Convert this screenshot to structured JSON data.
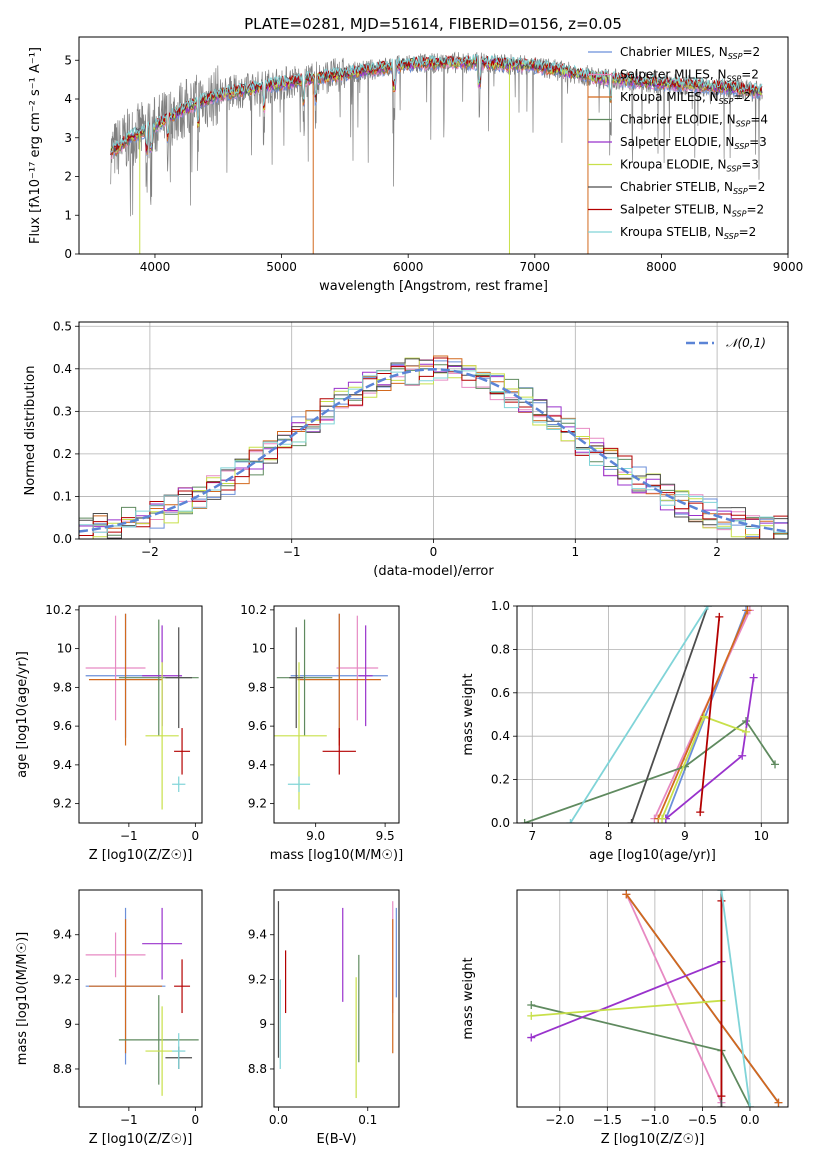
{
  "figure_title": "PLATE=0281, MJD=51614, FIBERID=0156, z=0.05",
  "colors": {
    "Chabrier MILES": "#6b8fd9",
    "Salpeter MILES": "#e78ac3",
    "Kroupa MILES": "#d2691e",
    "Chabrier ELODIE": "#5f8a5f",
    "Salpeter ELODIE": "#9932cc",
    "Kroupa ELODIE": "#c8e04a",
    "Chabrier STELIB": "#4d4d4d",
    "Salpeter STELIB": "#b30000",
    "Kroupa STELIB": "#80d4d8"
  },
  "legend_spectrum": [
    {
      "name": "Chabrier MILES",
      "label": "Chabrier MILES, N",
      "sub": "SSP",
      "tail": "=2"
    },
    {
      "name": "Salpeter MILES",
      "label": "Salpeter MILES, N",
      "sub": "SSP",
      "tail": "=2"
    },
    {
      "name": "Kroupa MILES",
      "label": "Kroupa MILES, N",
      "sub": "SSP",
      "tail": "=2"
    },
    {
      "name": "Chabrier ELODIE",
      "label": "Chabrier ELODIE, N",
      "sub": "SSP",
      "tail": "=4"
    },
    {
      "name": "Salpeter ELODIE",
      "label": "Salpeter ELODIE, N",
      "sub": "SSP",
      "tail": "=3"
    },
    {
      "name": "Kroupa ELODIE",
      "label": "Kroupa ELODIE, N",
      "sub": "SSP",
      "tail": "=3"
    },
    {
      "name": "Chabrier STELIB",
      "label": "Chabrier STELIB, N",
      "sub": "SSP",
      "tail": "=2"
    },
    {
      "name": "Salpeter STELIB",
      "label": "Salpeter STELIB, N",
      "sub": "SSP",
      "tail": "=2"
    },
    {
      "name": "Kroupa STELIB",
      "label": "Kroupa STELIB, N",
      "sub": "SSP",
      "tail": "=2"
    }
  ],
  "chart_data": [
    {
      "id": "spectrum",
      "type": "line",
      "xlabel": "wavelength [Angstrom, rest frame]",
      "ylabel": "Flux [fλ10⁻¹⁷ erg cm⁻² s⁻¹ A⁻¹]",
      "xlim": [
        3400,
        9000
      ],
      "ylim": [
        0,
        5.6
      ],
      "xticks": [
        4000,
        5000,
        6000,
        7000,
        8000,
        9000
      ],
      "yticks": [
        0,
        1,
        2,
        3,
        4,
        5
      ],
      "data_series": {
        "name": "",
        "color": "#808080",
        "x_range": [
          3650,
          8800
        ]
      },
      "continuum_points": [
        [
          3650,
          2.6
        ],
        [
          3800,
          3.0
        ],
        [
          4000,
          3.3
        ],
        [
          4200,
          3.7
        ],
        [
          4500,
          4.1
        ],
        [
          5000,
          4.4
        ],
        [
          5500,
          4.65
        ],
        [
          6000,
          4.9
        ],
        [
          6500,
          4.95
        ],
        [
          7000,
          4.85
        ],
        [
          7500,
          4.55
        ],
        [
          8000,
          4.4
        ],
        [
          8500,
          4.3
        ],
        [
          8750,
          4.2
        ]
      ],
      "legend_position": "top-right"
    },
    {
      "id": "residual_histogram",
      "type": "line",
      "xlabel": "(data-model)/error",
      "ylabel": "Normed distribution",
      "xlim": [
        -2.5,
        2.5
      ],
      "ylim": [
        0,
        0.51
      ],
      "xticks": [
        -2,
        -1,
        0,
        1,
        2
      ],
      "yticks": [
        0.0,
        0.1,
        0.2,
        0.3,
        0.4,
        0.5
      ],
      "grid": true,
      "legend_position": "top-right",
      "reference": {
        "name": "𝒩(0,1)",
        "mean": 0,
        "sigma": 1
      },
      "bin_width": 0.1
    },
    {
      "id": "age_vs_Z",
      "type": "scatter",
      "xlabel": "Z [log10(Z/Z☉)]",
      "ylabel": "age [log10(age/yr)]",
      "xlim": [
        -1.75,
        0.1
      ],
      "ylim": [
        9.1,
        10.22
      ],
      "xticks": [
        -1,
        0
      ],
      "yticks": [
        9.2,
        9.4,
        9.6,
        9.8,
        10.0,
        10.2
      ],
      "points": [
        {
          "model": "Chabrier MILES",
          "x": -1.05,
          "y": 9.86,
          "xerr": 0.6,
          "yerr": 0.32
        },
        {
          "model": "Salpeter MILES",
          "x": -1.2,
          "y": 9.9,
          "xerr": 0.45,
          "yerr": 0.27
        },
        {
          "model": "Kroupa MILES",
          "x": -1.05,
          "y": 9.84,
          "xerr": 0.55,
          "yerr": 0.34
        },
        {
          "model": "Chabrier ELODIE",
          "x": -0.55,
          "y": 9.85,
          "xerr": 0.6,
          "yerr": 0.3
        },
        {
          "model": "Salpeter ELODIE",
          "x": -0.5,
          "y": 9.86,
          "xerr": 0.3,
          "yerr": 0.26
        },
        {
          "model": "Kroupa ELODIE",
          "x": -0.5,
          "y": 9.55,
          "xerr": 0.25,
          "yerr": 0.38
        },
        {
          "model": "Chabrier STELIB",
          "x": -0.25,
          "y": 9.85,
          "xerr": 0.2,
          "yerr": 0.26
        },
        {
          "model": "Salpeter STELIB",
          "x": -0.2,
          "y": 9.47,
          "xerr": 0.12,
          "yerr": 0.12
        },
        {
          "model": "Kroupa STELIB",
          "x": -0.25,
          "y": 9.3,
          "xerr": 0.1,
          "yerr": 0.04
        }
      ]
    },
    {
      "id": "age_vs_mass",
      "type": "scatter",
      "xlabel": "mass [log10(M/M☉)]",
      "ylabel": "",
      "xlim": [
        8.7,
        9.6
      ],
      "ylim": [
        9.1,
        10.22
      ],
      "xticks": [
        9.0,
        9.5
      ],
      "yticks": [
        9.2,
        9.4,
        9.6,
        9.8,
        10.0,
        10.2
      ],
      "points": [
        {
          "model": "Chabrier MILES",
          "x": 9.17,
          "y": 9.86,
          "xerr": 0.35,
          "yerr": 0.32
        },
        {
          "model": "Salpeter MILES",
          "x": 9.3,
          "y": 9.9,
          "xerr": 0.15,
          "yerr": 0.27
        },
        {
          "model": "Kroupa MILES",
          "x": 9.17,
          "y": 9.84,
          "xerr": 0.3,
          "yerr": 0.34
        },
        {
          "model": "Chabrier ELODIE",
          "x": 8.92,
          "y": 9.85,
          "xerr": 0.2,
          "yerr": 0.3
        },
        {
          "model": "Salpeter ELODIE",
          "x": 9.36,
          "y": 9.86,
          "xerr": 0.05,
          "yerr": 0.26
        },
        {
          "model": "Kroupa ELODIE",
          "x": 8.88,
          "y": 9.55,
          "xerr": 0.2,
          "yerr": 0.38
        },
        {
          "model": "Chabrier STELIB",
          "x": 8.86,
          "y": 9.85,
          "xerr": 0.05,
          "yerr": 0.26
        },
        {
          "model": "Salpeter STELIB",
          "x": 9.17,
          "y": 9.47,
          "xerr": 0.12,
          "yerr": 0.12
        },
        {
          "model": "Kroupa STELIB",
          "x": 8.88,
          "y": 9.3,
          "xerr": 0.08,
          "yerr": 0.04
        }
      ]
    },
    {
      "id": "weight_vs_age",
      "type": "line",
      "xlabel": "age [log10(age/yr)]",
      "ylabel": "mass weight",
      "xlim": [
        6.8,
        10.35
      ],
      "ylim": [
        0,
        1
      ],
      "xticks": [
        7,
        8,
        9,
        10
      ],
      "yticks": [
        0.0,
        0.2,
        0.4,
        0.6,
        0.8,
        1.0
      ],
      "grid": true,
      "series": [
        {
          "name": "Chabrier MILES",
          "x": [
            8.75,
            9.8
          ],
          "y": [
            0.02,
            0.98
          ]
        },
        {
          "name": "Salpeter MILES",
          "x": [
            8.6,
            9.85
          ],
          "y": [
            0.02,
            0.98
          ]
        },
        {
          "name": "Kroupa MILES",
          "x": [
            8.65,
            9.82
          ],
          "y": [
            0.02,
            0.98
          ]
        },
        {
          "name": "Chabrier ELODIE",
          "x": [
            6.9,
            9.0,
            9.8,
            10.18
          ],
          "y": [
            0.0,
            0.26,
            0.47,
            0.27
          ]
        },
        {
          "name": "Salpeter ELODIE",
          "x": [
            8.75,
            9.75,
            9.9
          ],
          "y": [
            0.02,
            0.31,
            0.67
          ]
        },
        {
          "name": "Kroupa ELODIE",
          "x": [
            8.7,
            9.25,
            9.8
          ],
          "y": [
            0.02,
            0.49,
            0.42
          ]
        },
        {
          "name": "Chabrier STELIB",
          "x": [
            8.3,
            9.3
          ],
          "y": [
            0.0,
            1.0
          ]
        },
        {
          "name": "Salpeter STELIB",
          "x": [
            9.2,
            9.45
          ],
          "y": [
            0.05,
            0.95
          ]
        },
        {
          "name": "Kroupa STELIB",
          "x": [
            7.5,
            9.3
          ],
          "y": [
            0.0,
            1.0
          ]
        }
      ]
    },
    {
      "id": "mass_vs_Z",
      "type": "scatter",
      "xlabel": "Z [log10(Z/Z☉)]",
      "ylabel": "mass [log10(M/M☉)]",
      "xlim": [
        -1.75,
        0.1
      ],
      "ylim": [
        8.63,
        9.6
      ],
      "xticks": [
        -1,
        0
      ],
      "yticks": [
        8.8,
        9.0,
        9.2,
        9.4
      ],
      "points": [
        {
          "model": "Chabrier MILES",
          "x": -1.05,
          "y": 9.17,
          "xerr": 0.6,
          "yerr": 0.35
        },
        {
          "model": "Salpeter MILES",
          "x": -1.2,
          "y": 9.31,
          "xerr": 0.45,
          "yerr": 0.1
        },
        {
          "model": "Kroupa MILES",
          "x": -1.05,
          "y": 9.17,
          "xerr": 0.55,
          "yerr": 0.3
        },
        {
          "model": "Chabrier ELODIE",
          "x": -0.55,
          "y": 8.93,
          "xerr": 0.6,
          "yerr": 0.2
        },
        {
          "model": "Salpeter ELODIE",
          "x": -0.5,
          "y": 9.36,
          "xerr": 0.3,
          "yerr": 0.16
        },
        {
          "model": "Kroupa ELODIE",
          "x": -0.5,
          "y": 8.88,
          "xerr": 0.25,
          "yerr": 0.2
        },
        {
          "model": "Chabrier STELIB",
          "x": -0.25,
          "y": 8.85,
          "xerr": 0.2,
          "yerr": 0.05
        },
        {
          "model": "Salpeter STELIB",
          "x": -0.2,
          "y": 9.17,
          "xerr": 0.12,
          "yerr": 0.12
        },
        {
          "model": "Kroupa STELIB",
          "x": -0.25,
          "y": 8.88,
          "xerr": 0.1,
          "yerr": 0.08
        }
      ]
    },
    {
      "id": "mass_vs_ebv",
      "type": "scatter",
      "xlabel": "E(B-V)",
      "ylabel": "",
      "xlim": [
        -0.005,
        0.135
      ],
      "ylim": [
        8.63,
        9.6
      ],
      "xticks": [
        0.0,
        0.1
      ],
      "yticks": [
        8.8,
        9.0,
        9.2,
        9.4
      ],
      "points": [
        {
          "model": "Chabrier MILES",
          "x": 0.132,
          "y": 9.32,
          "yerr": 0.2
        },
        {
          "model": "Salpeter MILES",
          "x": 0.128,
          "y": 9.3,
          "yerr": 0.25
        },
        {
          "model": "Kroupa MILES",
          "x": 0.128,
          "y": 9.17,
          "yerr": 0.3
        },
        {
          "model": "Chabrier ELODIE",
          "x": 0.09,
          "y": 9.07,
          "yerr": 0.24
        },
        {
          "model": "Salpeter ELODIE",
          "x": 0.072,
          "y": 9.31,
          "yerr": 0.21
        },
        {
          "model": "Kroupa ELODIE",
          "x": 0.087,
          "y": 8.94,
          "yerr": 0.27
        },
        {
          "model": "Chabrier STELIB",
          "x": 0.0,
          "y": 9.2,
          "yerr": 0.35
        },
        {
          "model": "Salpeter STELIB",
          "x": 0.008,
          "y": 9.19,
          "yerr": 0.14
        },
        {
          "model": "Kroupa STELIB",
          "x": 0.002,
          "y": 9.0,
          "yerr": 0.2
        }
      ]
    },
    {
      "id": "weight_vs_Z",
      "type": "line",
      "xlabel": "Z [log10(Z/Z☉)]",
      "ylabel": "mass weight",
      "xlim": [
        -2.45,
        0.4
      ],
      "ylim": [
        0,
        1
      ],
      "xticks": [
        -2.0,
        -1.5,
        -1.0,
        -0.5,
        0.0
      ],
      "grid": true,
      "series": [
        {
          "name": "Chabrier MILES",
          "x": [
            -1.3,
            0.3
          ],
          "y": [
            0.98,
            0.02
          ]
        },
        {
          "name": "Salpeter MILES",
          "x": [
            -1.3,
            -0.3
          ],
          "y": [
            0.98,
            0.02
          ]
        },
        {
          "name": "Kroupa MILES",
          "x": [
            -1.3,
            0.3
          ],
          "y": [
            0.98,
            0.02
          ]
        },
        {
          "name": "Chabrier ELODIE",
          "x": [
            -2.3,
            -0.3,
            0.0
          ],
          "y": [
            0.47,
            0.26,
            0.0
          ]
        },
        {
          "name": "Salpeter ELODIE",
          "x": [
            -2.3,
            -0.3
          ],
          "y": [
            0.32,
            0.67
          ]
        },
        {
          "name": "Kroupa ELODIE",
          "x": [
            -2.3,
            -0.3
          ],
          "y": [
            0.42,
            0.49
          ]
        },
        {
          "name": "Chabrier STELIB",
          "x": [
            -0.3,
            -0.3
          ],
          "y": [
            0.0,
            1.0
          ]
        },
        {
          "name": "Salpeter STELIB",
          "x": [
            -0.3,
            -0.3
          ],
          "y": [
            0.05,
            0.95
          ]
        },
        {
          "name": "Kroupa STELIB",
          "x": [
            -0.3,
            0.0
          ],
          "y": [
            1.0,
            0.0
          ]
        }
      ]
    }
  ]
}
